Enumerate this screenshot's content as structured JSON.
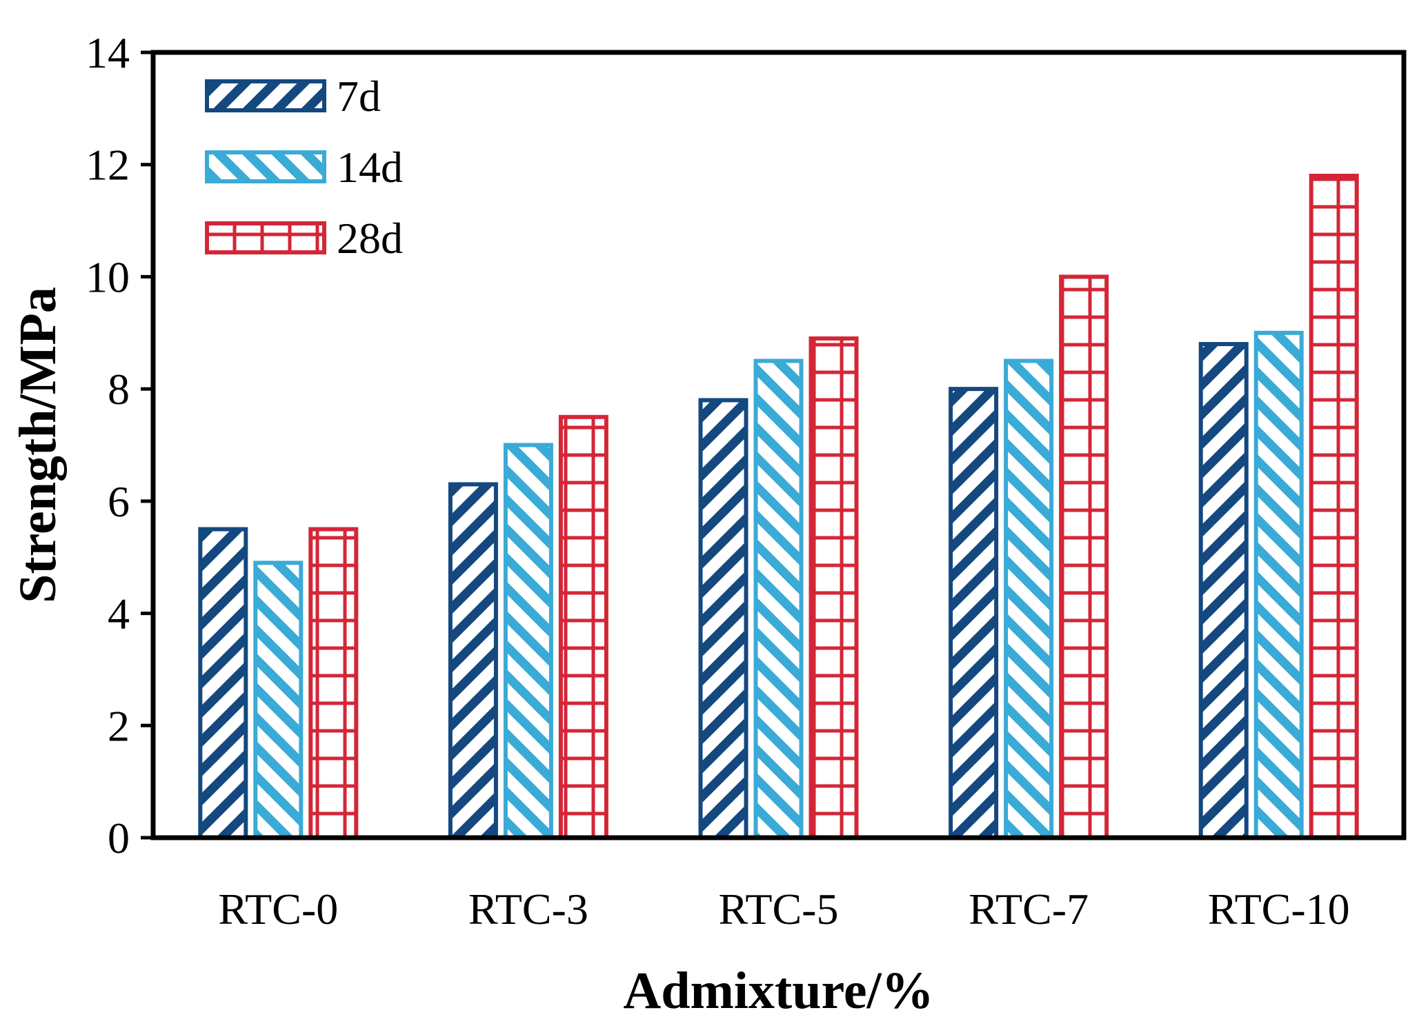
{
  "chart_data": {
    "type": "bar",
    "title": "",
    "xlabel": "Admixture/%",
    "ylabel": "Strength/MPa",
    "categories": [
      "RTC-0",
      "RTC-3",
      "RTC-5",
      "RTC-7",
      "RTC-10"
    ],
    "series": [
      {
        "name": "7d",
        "color": "#14487f",
        "pattern": "diagonal-forward",
        "values": [
          5.5,
          6.3,
          7.8,
          8.0,
          8.8
        ]
      },
      {
        "name": "14d",
        "color": "#3aaad7",
        "pattern": "diagonal-back",
        "values": [
          4.9,
          7.0,
          8.5,
          8.5,
          9.0
        ]
      },
      {
        "name": "28d",
        "color": "#d42637",
        "pattern": "grid",
        "values": [
          5.5,
          7.5,
          8.9,
          10.0,
          11.8
        ]
      }
    ],
    "ylim": [
      0,
      14
    ],
    "yticks": [
      "0",
      "2",
      "4",
      "6",
      "8",
      "10",
      "12",
      "14"
    ],
    "grid": false,
    "legend_position": "top-left"
  }
}
